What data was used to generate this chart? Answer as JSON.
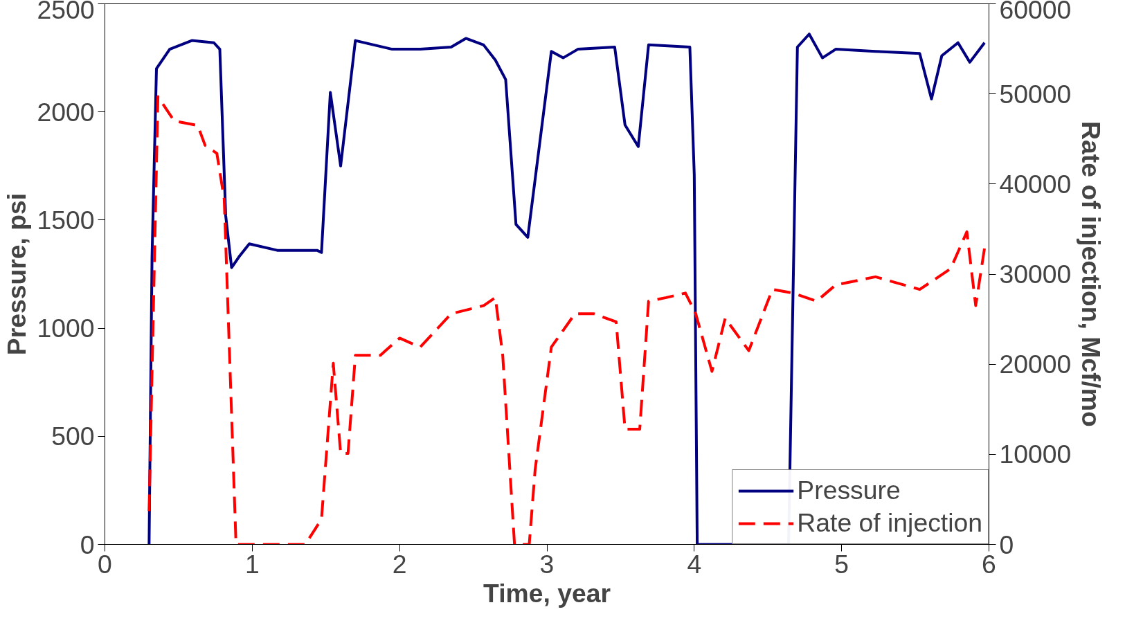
{
  "chart_data": {
    "type": "line",
    "xlabel": "Time, year",
    "ylabel": "Pressure, psi",
    "y2label": "Rate of injection, Mcf/mo",
    "xlim": [
      0,
      6
    ],
    "xticks": [
      0,
      1,
      2,
      3,
      4,
      5,
      6
    ],
    "ylim": [
      0,
      2500
    ],
    "yticks": [
      0,
      500,
      1000,
      1500,
      2000,
      2500
    ],
    "y2lim": [
      0,
      60000
    ],
    "y2ticks": [
      0,
      10000,
      20000,
      30000,
      40000,
      50000,
      60000
    ],
    "grid": false,
    "legend": "bottom right",
    "marker": "none",
    "series": [
      {
        "name": "Pressure",
        "color": "#000080",
        "line_style": "solid",
        "x": [
          0.3,
          0.32,
          0.35,
          0.44,
          0.59,
          0.74,
          0.78,
          0.82,
          0.86,
          0.91,
          0.98,
          1.17,
          1.44,
          1.47,
          1.53,
          1.6,
          1.7,
          1.95,
          2.14,
          2.35,
          2.45,
          2.57,
          2.65,
          2.72,
          2.79,
          2.87,
          3.03,
          3.11,
          3.21,
          3.46,
          3.53,
          3.62,
          3.69,
          3.97,
          4.0,
          4.02,
          4.64,
          4.7,
          4.78,
          4.87,
          4.96,
          5.23,
          5.53,
          5.61,
          5.68,
          5.79,
          5.87,
          5.97
        ],
        "values": [
          0,
          1330,
          2200,
          2290,
          2330,
          2320,
          2290,
          1520,
          1280,
          1330,
          1390,
          1360,
          1360,
          1350,
          2090,
          1750,
          2330,
          2290,
          2290,
          2300,
          2340,
          2310,
          2240,
          2150,
          1480,
          1420,
          2280,
          2250,
          2290,
          2300,
          1940,
          1840,
          2310,
          2300,
          1710,
          0,
          0,
          2300,
          2360,
          2250,
          2290,
          2280,
          2270,
          2060,
          2260,
          2320,
          2230,
          2320
        ]
      },
      {
        "name": "Rate of injection",
        "color": "#ff0000",
        "line_style": "dashed",
        "axis": "y2",
        "x": [
          0.3,
          0.36,
          0.47,
          0.63,
          0.68,
          0.76,
          0.81,
          0.89,
          1.36,
          1.47,
          1.55,
          1.6,
          1.65,
          1.7,
          1.87,
          2.0,
          2.14,
          2.35,
          2.57,
          2.65,
          2.7,
          2.78,
          2.88,
          2.92,
          3.03,
          3.19,
          3.32,
          3.47,
          3.53,
          3.63,
          3.69,
          3.81,
          3.94,
          4.01,
          4.12,
          4.21,
          4.37,
          4.53,
          4.67,
          4.83,
          4.96,
          5.23,
          5.53,
          5.74,
          5.85,
          5.91,
          5.97
        ],
        "values": [
          3700,
          49700,
          47000,
          46500,
          44300,
          43400,
          38300,
          0,
          0,
          2800,
          20100,
          10100,
          10100,
          21000,
          21000,
          22900,
          21900,
          25600,
          26500,
          27400,
          21000,
          0,
          0,
          8300,
          21900,
          25600,
          25600,
          24700,
          12800,
          12800,
          27000,
          27400,
          27900,
          25600,
          19200,
          25100,
          21500,
          28300,
          27900,
          27000,
          28800,
          29700,
          28300,
          30600,
          34700,
          26500,
          32900
        ]
      }
    ]
  }
}
